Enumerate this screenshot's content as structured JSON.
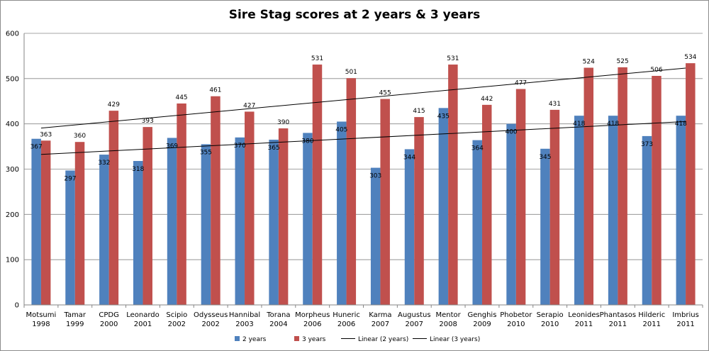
{
  "chart_data": {
    "type": "bar",
    "title": "Sire Stag scores at 2 years & 3 years",
    "xlabel": "",
    "ylabel": "",
    "ylim": [
      0,
      600
    ],
    "yticks": [
      0,
      100,
      200,
      300,
      400,
      500,
      600
    ],
    "grid": true,
    "legend_position": "bottom",
    "categories": [
      [
        "Motsumi",
        "1998"
      ],
      [
        "Tamar",
        "1999"
      ],
      [
        "CPDG",
        "2000"
      ],
      [
        "Leonardo",
        "2001"
      ],
      [
        "Scipio",
        "2002"
      ],
      [
        "Odysseus",
        "2002"
      ],
      [
        "Hannibal",
        "2003"
      ],
      [
        "Torana",
        "2004"
      ],
      [
        "Morpheus",
        "2006"
      ],
      [
        "Huneric",
        "2006"
      ],
      [
        "Karma",
        "2007"
      ],
      [
        "Augustus",
        "2007"
      ],
      [
        "Mentor",
        "2008"
      ],
      [
        "Genghis",
        "2009"
      ],
      [
        "Phobetor",
        "2010"
      ],
      [
        "Serapio",
        "2010"
      ],
      [
        "Leonides",
        "2011"
      ],
      [
        "Phantasos",
        "2011"
      ],
      [
        "Hilderic",
        "2011"
      ],
      [
        "Imbrius",
        "2011"
      ]
    ],
    "series": [
      {
        "name": "2 years",
        "color": "#4f81bd",
        "values": [
          367,
          297,
          332,
          318,
          369,
          355,
          370,
          365,
          380,
          405,
          303,
          344,
          435,
          364,
          400,
          345,
          418,
          418,
          373,
          418
        ]
      },
      {
        "name": "3 years",
        "color": "#c0504d",
        "values": [
          363,
          360,
          429,
          393,
          445,
          461,
          427,
          390,
          531,
          501,
          455,
          415,
          531,
          442,
          477,
          431,
          524,
          525,
          506,
          534
        ]
      }
    ],
    "trendlines": [
      {
        "name": "Linear (2 years)",
        "color": "#000000",
        "of": "2 years"
      },
      {
        "name": "Linear (3 years)",
        "color": "#000000",
        "of": "3 years"
      }
    ]
  }
}
